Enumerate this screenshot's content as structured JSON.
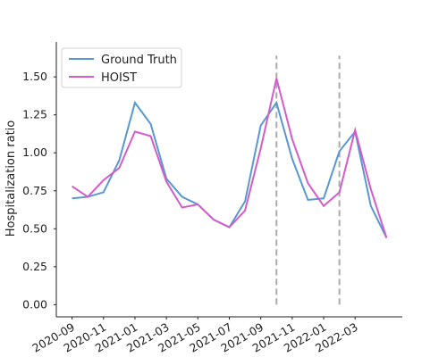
{
  "chart_data": {
    "type": "line",
    "y_label": "Hospitalization ratio",
    "x": [
      "2020-09",
      "2020-10",
      "2020-11",
      "2020-12",
      "2021-01",
      "2021-02",
      "2021-03",
      "2021-04",
      "2021-05",
      "2021-06",
      "2021-07",
      "2021-08",
      "2021-09",
      "2021-10",
      "2021-11",
      "2021-12",
      "2022-01",
      "2022-02",
      "2022-03",
      "2022-04",
      "2022-05"
    ],
    "series": [
      {
        "name": "Ground Truth",
        "color": "#5797d2",
        "values": [
          0.7,
          0.71,
          0.74,
          0.95,
          1.33,
          1.19,
          0.83,
          0.71,
          0.66,
          0.56,
          0.51,
          0.68,
          1.18,
          1.33,
          0.96,
          0.69,
          0.7,
          1.01,
          1.14,
          0.65,
          0.44
        ]
      },
      {
        "name": "HOIST",
        "color": "#d45cc8",
        "values": [
          0.78,
          0.71,
          0.82,
          0.9,
          1.14,
          1.11,
          0.81,
          0.64,
          0.66,
          0.56,
          0.51,
          0.62,
          1.03,
          1.49,
          1.09,
          0.8,
          0.65,
          0.74,
          1.15,
          0.76,
          0.44
        ]
      }
    ],
    "xlim": [
      "2020-08",
      "2022-06"
    ],
    "xticks": [
      "2020-09",
      "2020-11",
      "2021-01",
      "2021-03",
      "2021-05",
      "2021-07",
      "2021-09",
      "2021-11",
      "2022-01",
      "2022-03"
    ],
    "ylim": [
      -0.08,
      1.73
    ],
    "yticks": [
      {
        "value": 0,
        "label": "0.00"
      },
      {
        "value": 0.25,
        "label": "0.25"
      },
      {
        "value": 0.5,
        "label": "0.50"
      },
      {
        "value": 0.75,
        "label": "0.75"
      },
      {
        "value": 1,
        "label": "1.00"
      },
      {
        "value": 1.25,
        "label": "1.25"
      },
      {
        "value": 1.5,
        "label": "1.50"
      }
    ],
    "vlines": [
      "2021-10",
      "2022-02"
    ],
    "vline_range": [
      0,
      1.64
    ],
    "vline_color": "#aaaaaa",
    "legend": "upper left",
    "grid": false
  }
}
